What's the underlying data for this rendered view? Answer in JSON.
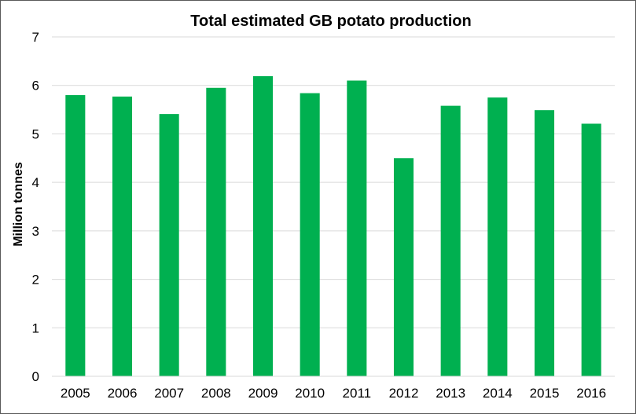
{
  "chart_data": {
    "type": "bar",
    "title": "Total estimated GB potato production",
    "xlabel": "",
    "ylabel": "Million tonnes",
    "categories": [
      "2005",
      "2006",
      "2007",
      "2008",
      "2009",
      "2010",
      "2011",
      "2012",
      "2013",
      "2014",
      "2015",
      "2016"
    ],
    "values": [
      5.8,
      5.77,
      5.41,
      5.95,
      6.19,
      5.84,
      6.1,
      4.5,
      5.58,
      5.75,
      5.49,
      5.21
    ],
    "ylim": [
      0,
      7
    ],
    "yticks": [
      "0",
      "1",
      "2",
      "3",
      "4",
      "5",
      "6",
      "7"
    ],
    "grid": true,
    "legend": "none",
    "bar_color": "#00b050",
    "grid_color": "#d9d9d9"
  }
}
